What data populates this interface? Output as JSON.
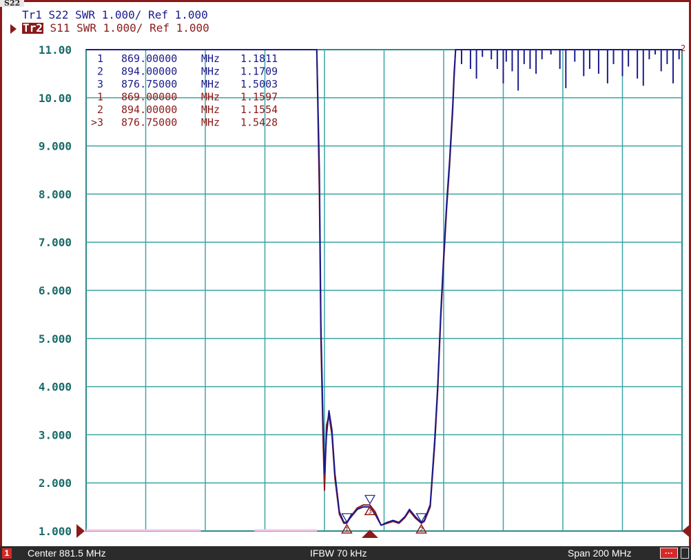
{
  "window_tab": "S22",
  "traces": {
    "tr1": {
      "name": "Tr1",
      "param": "S22",
      "format": "SWR",
      "scale": "1.000/",
      "ref": "Ref 1.000",
      "color": "#1a1a8c"
    },
    "tr2": {
      "name": "Tr2",
      "param": "S11",
      "format": "SWR",
      "scale": "1.000/",
      "ref": "Ref 1.000",
      "color": "#8b1a1a"
    }
  },
  "markers": [
    {
      "label": "1",
      "freq": "869.00000",
      "unit": "MHz",
      "value": "1.1811",
      "trace": "tr1"
    },
    {
      "label": "2",
      "freq": "894.00000",
      "unit": "MHz",
      "value": "1.1709",
      "trace": "tr1"
    },
    {
      "label": "3",
      "freq": "876.75000",
      "unit": "MHz",
      "value": "1.5003",
      "trace": "tr1"
    },
    {
      "label": "1",
      "freq": "869.00000",
      "unit": "MHz",
      "value": "1.1597",
      "trace": "tr2"
    },
    {
      "label": "2",
      "freq": "894.00000",
      "unit": "MHz",
      "value": "1.1554",
      "trace": "tr2"
    },
    {
      "label": ">3",
      "freq": "876.75000",
      "unit": "MHz",
      "value": "1.5428",
      "trace": "tr2"
    }
  ],
  "status_bar": {
    "channel": "1",
    "center": "Center 881.5 MHz",
    "ifbw": "IFBW 70 kHz",
    "span": "Span 200 MHz",
    "menu": "···"
  },
  "chart_data": {
    "type": "line",
    "ylim": [
      1,
      11
    ],
    "xlim_mhz": [
      781.5,
      981.5
    ],
    "y_tick_labels": [
      "11.00",
      "10.00",
      "9.000",
      "8.000",
      "7.000",
      "6.000",
      "5.000",
      "4.000",
      "3.000",
      "2.000",
      "1.000"
    ],
    "grid": true,
    "series": [
      {
        "name": "Tr1",
        "color": "#1a1a8c",
        "x": [
          781.5,
          858.9,
          859.8,
          860.3,
          861.0,
          861.5,
          862.2,
          863.0,
          864.0,
          865.0,
          866.5,
          868.0,
          869.0,
          870.5,
          872.5,
          874.5,
          876.75,
          878.5,
          880.5,
          882.5,
          884.5,
          886.5,
          888.5,
          890.0,
          892.0,
          894.0,
          895.0,
          897.0,
          898.5,
          899.5,
          900.5,
          901.5,
          902.5,
          903.5,
          904.5,
          905.0,
          905.5,
          906.0,
          981.5
        ],
        "y": [
          11.0,
          11.0,
          8.5,
          5.3,
          3.3,
          2.2,
          3.0,
          3.5,
          3.1,
          2.2,
          1.4,
          1.18,
          1.18,
          1.3,
          1.45,
          1.5,
          1.5,
          1.35,
          1.12,
          1.18,
          1.22,
          1.18,
          1.3,
          1.45,
          1.3,
          1.17,
          1.22,
          1.55,
          2.9,
          4.0,
          5.5,
          6.7,
          7.8,
          8.7,
          9.8,
          10.5,
          11.0,
          11.0,
          11.0
        ]
      },
      {
        "name": "Tr2",
        "color": "#8b1a1a",
        "x": [
          781.5,
          858.9,
          859.8,
          860.3,
          861.0,
          861.5,
          862.2,
          863.0,
          864.0,
          865.0,
          866.5,
          868.0,
          869.0,
          870.5,
          872.5,
          874.5,
          876.75,
          878.5,
          880.5,
          882.5,
          884.5,
          886.5,
          888.5,
          890.0,
          892.0,
          894.0,
          895.0,
          897.0,
          898.5,
          899.5,
          900.5,
          901.5,
          902.5,
          903.5,
          904.5,
          905.0,
          905.5,
          906.0,
          981.5
        ],
        "y": [
          11.0,
          11.0,
          8.0,
          5.0,
          3.0,
          1.85,
          3.2,
          3.4,
          3.0,
          2.1,
          1.35,
          1.16,
          1.16,
          1.32,
          1.48,
          1.54,
          1.54,
          1.4,
          1.12,
          1.16,
          1.2,
          1.16,
          1.28,
          1.42,
          1.27,
          1.16,
          1.2,
          1.5,
          2.8,
          3.9,
          5.4,
          6.6,
          7.7,
          8.6,
          9.7,
          10.4,
          11.0,
          11.0,
          11.0
        ]
      }
    ],
    "marker_positions": [
      {
        "label": "1",
        "x": 869.0,
        "y": 1.16
      },
      {
        "label": "2",
        "x": 894.0,
        "y": 1.16
      },
      {
        "label": "3",
        "x": 876.75,
        "y": 1.54
      }
    ],
    "active_marker_x": 876.75
  }
}
